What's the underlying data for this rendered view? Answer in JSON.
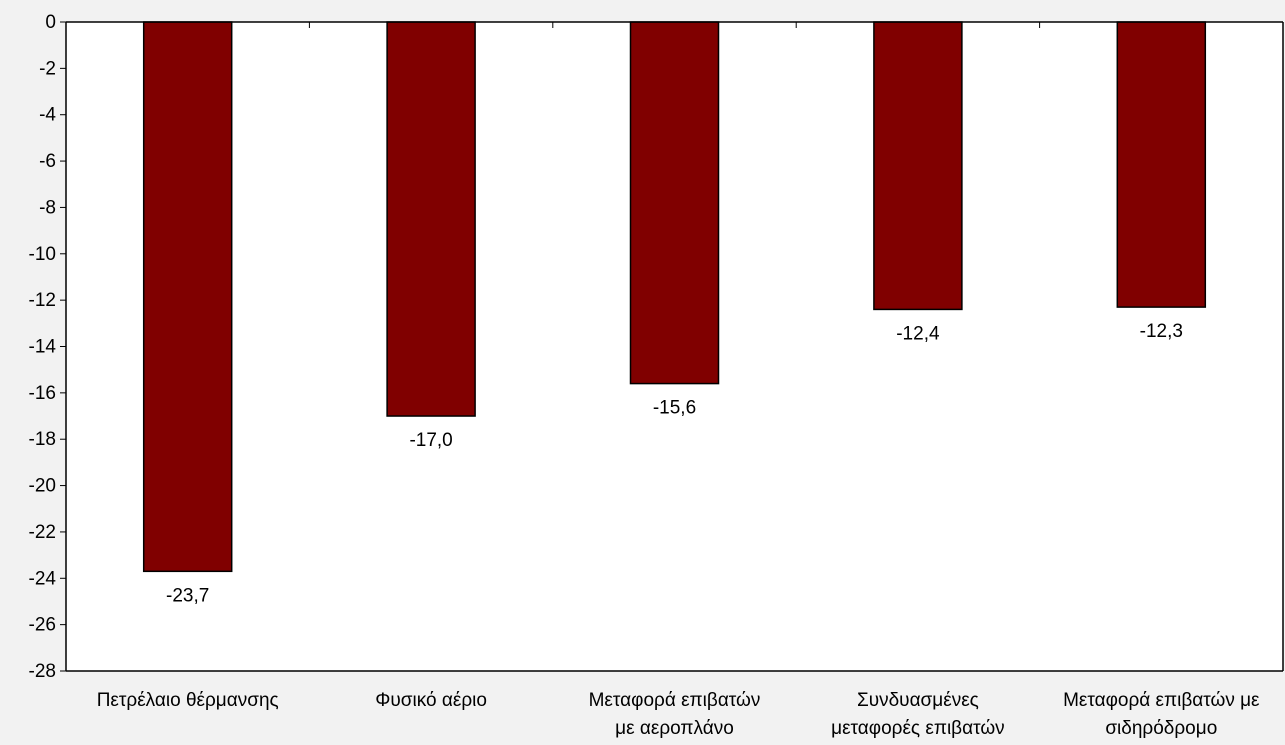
{
  "chart_data": {
    "type": "bar",
    "categories": [
      [
        "Πετρέλαιο θέρμανσης"
      ],
      [
        "Φυσικό αέριο"
      ],
      [
        "Μεταφορά επιβατών",
        "με αεροπλάνο"
      ],
      [
        "Συνδυασμένες",
        "μεταφορές επιβατών"
      ],
      [
        "Μεταφορά επιβατών με",
        "σιδηρόδρομο"
      ]
    ],
    "values": [
      -23.7,
      -17.0,
      -15.6,
      -12.4,
      -12.3
    ],
    "data_labels": [
      "-23,7",
      "-17,0",
      "-15,6",
      "-12,4",
      "-12,3"
    ],
    "ylim": [
      -28,
      0
    ],
    "yticks": [
      0,
      -2,
      -4,
      -6,
      -8,
      -10,
      -12,
      -14,
      -16,
      -18,
      -20,
      -22,
      -24,
      -26,
      -28
    ],
    "title": "",
    "xlabel": "",
    "ylabel": "",
    "grid": false,
    "legend": "none",
    "colors": {
      "bar": "#800000",
      "bar_stroke": "#000000",
      "plot_background": "#ffffff",
      "page_background": "#f2f2f2"
    }
  }
}
